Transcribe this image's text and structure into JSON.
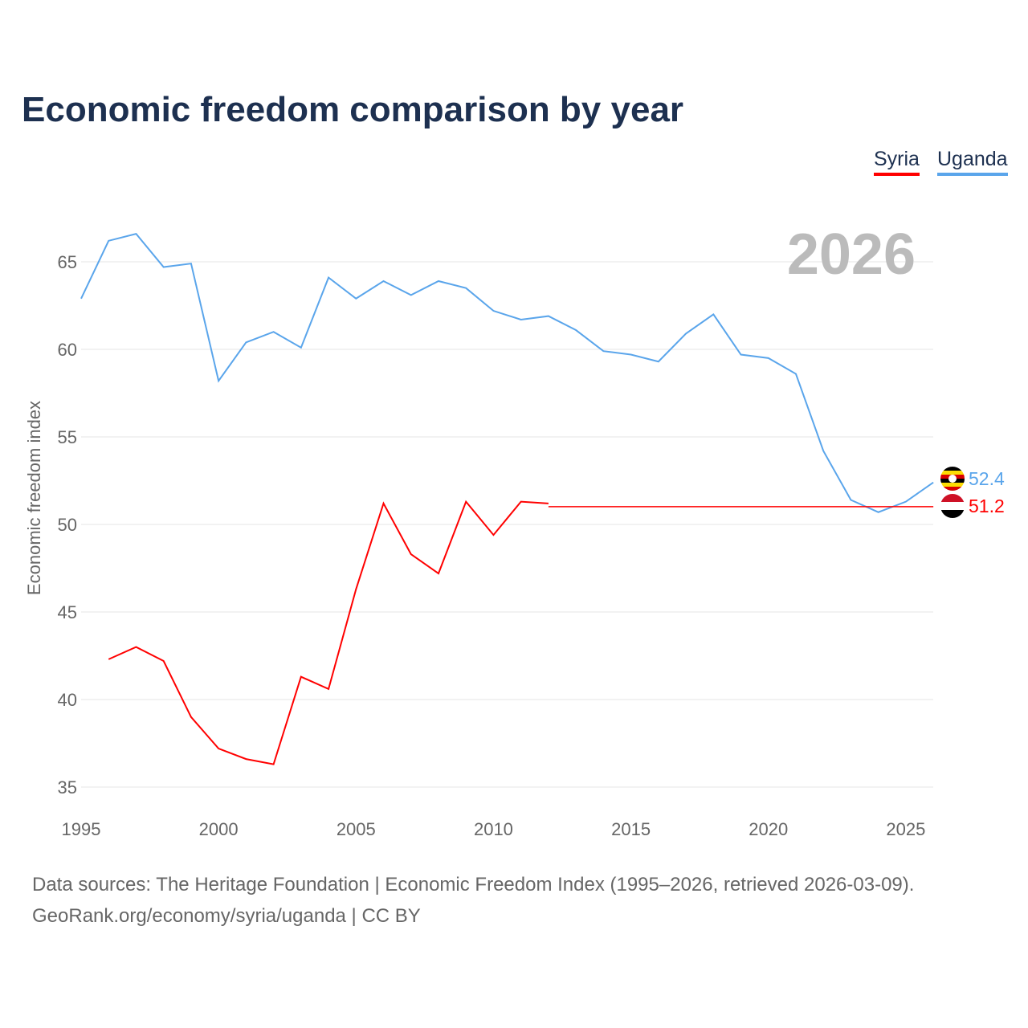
{
  "title": "Economic freedom comparison by year",
  "legend": [
    {
      "name": "Syria",
      "color": "#ff0000"
    },
    {
      "name": "Uganda",
      "color": "#5aa5eb"
    }
  ],
  "source_line1": "Data sources: The Heritage Foundation | Economic Freedom Index (1995–2026, retrieved 2026-03-09).",
  "source_line2": "GeoRank.org/economy/syria/uganda | CC BY",
  "chart_data": {
    "type": "line",
    "title": "Economic freedom comparison by year",
    "ylabel": "Economic freedom index",
    "xlim": [
      1995,
      2026
    ],
    "ylim": [
      34,
      67.5
    ],
    "xticks": [
      1995,
      2000,
      2005,
      2010,
      2015,
      2020,
      2025
    ],
    "yticks": [
      35,
      40,
      45,
      50,
      55,
      60,
      65
    ],
    "year_label": "2026",
    "series": [
      {
        "name": "Uganda",
        "color": "#5aa5eb",
        "end_label": "52.4",
        "x": [
          1995,
          1996,
          1997,
          1998,
          1999,
          2000,
          2001,
          2002,
          2003,
          2004,
          2005,
          2006,
          2007,
          2008,
          2009,
          2010,
          2011,
          2012,
          2013,
          2014,
          2015,
          2016,
          2017,
          2018,
          2019,
          2020,
          2021,
          2022,
          2023,
          2024,
          2025,
          2026
        ],
        "values": [
          62.9,
          66.2,
          66.6,
          64.7,
          64.9,
          58.2,
          60.4,
          61.0,
          60.1,
          64.1,
          62.9,
          63.9,
          63.1,
          63.9,
          63.5,
          62.2,
          61.7,
          61.9,
          61.1,
          59.9,
          59.7,
          59.3,
          60.9,
          62.0,
          59.7,
          59.5,
          58.6,
          54.2,
          51.4,
          50.7,
          51.3,
          52.4
        ]
      },
      {
        "name": "Syria",
        "color": "#ff0000",
        "end_label": "51.2",
        "x": [
          1996,
          1997,
          1998,
          1999,
          2000,
          2001,
          2002,
          2003,
          2004,
          2005,
          2006,
          2007,
          2008,
          2009,
          2010,
          2011,
          2012
        ],
        "values": [
          42.3,
          43.0,
          42.2,
          39.0,
          37.2,
          36.6,
          36.3,
          41.3,
          40.6,
          46.3,
          51.2,
          48.3,
          47.2,
          51.3,
          49.4,
          51.3,
          51.2
        ]
      }
    ]
  }
}
